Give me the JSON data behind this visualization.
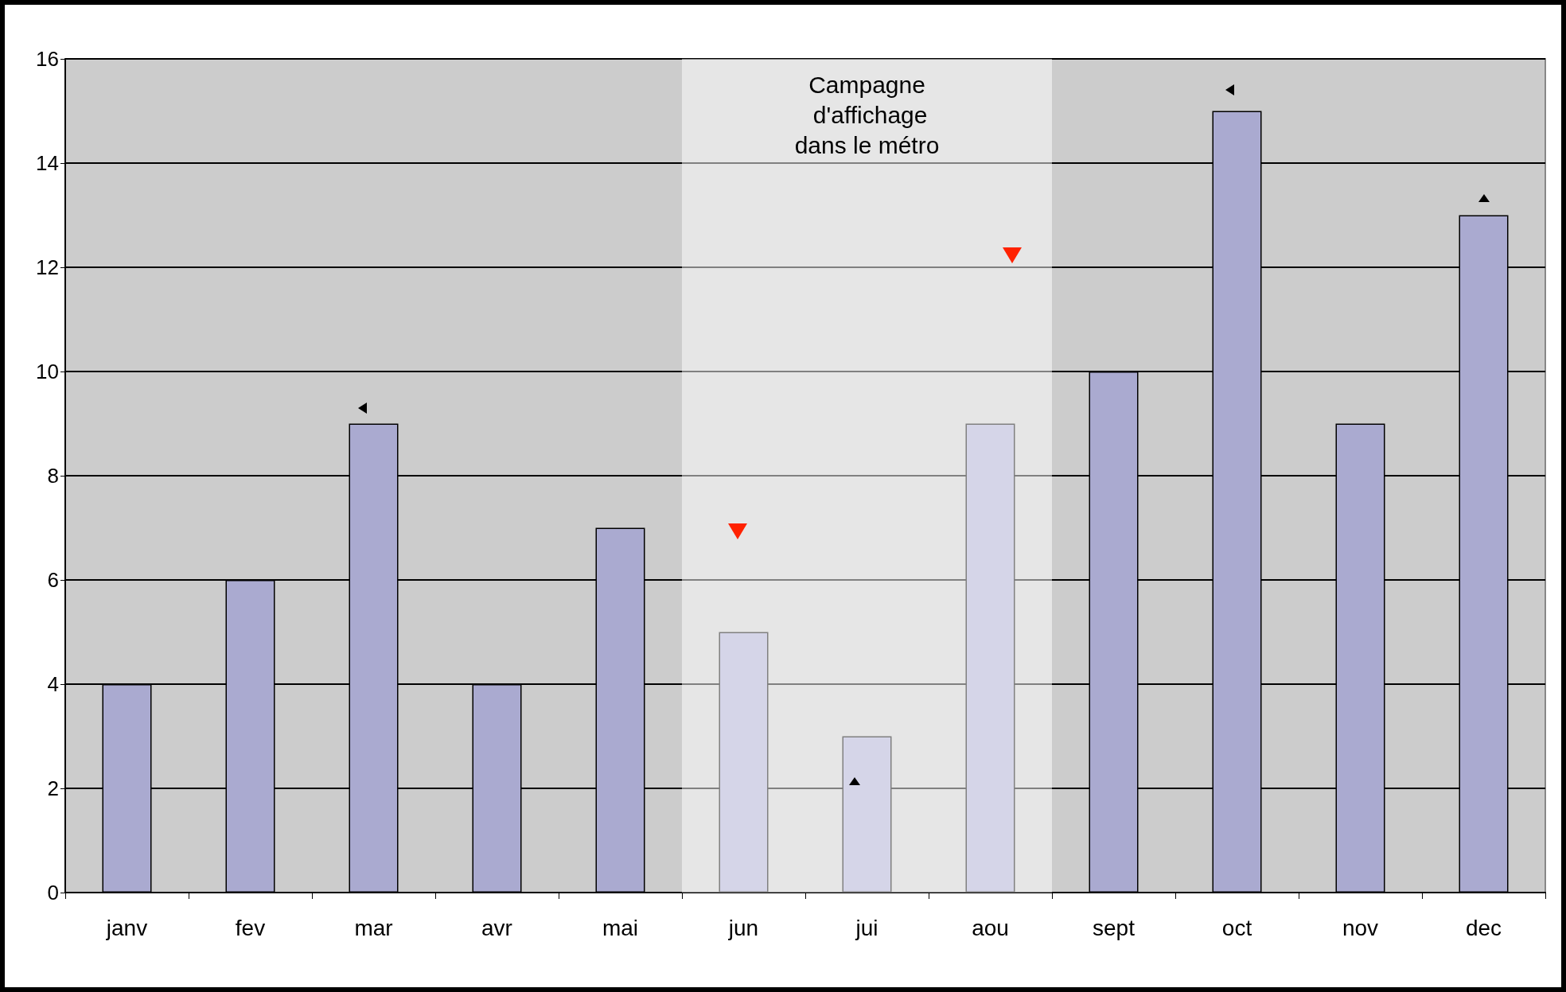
{
  "chart_data": {
    "type": "bar",
    "categories": [
      "janv",
      "fev",
      "mar",
      "avr",
      "mai",
      "jun",
      "jui",
      "aou",
      "sept",
      "oct",
      "nov",
      "dec"
    ],
    "values": [
      4,
      6,
      9,
      4,
      7,
      5,
      3,
      9,
      10,
      15,
      9,
      13
    ],
    "color": "#aaaad0",
    "ylim": [
      0,
      16
    ],
    "yticks": [
      0,
      2,
      4,
      6,
      8,
      10,
      12,
      14,
      16
    ],
    "grid": "y",
    "bands": [
      {
        "axis": "x",
        "from": "jun",
        "to": "aou",
        "label": "Campagne\n d'affichage\ndans le métro",
        "color": "#ffffff"
      }
    ]
  }
}
